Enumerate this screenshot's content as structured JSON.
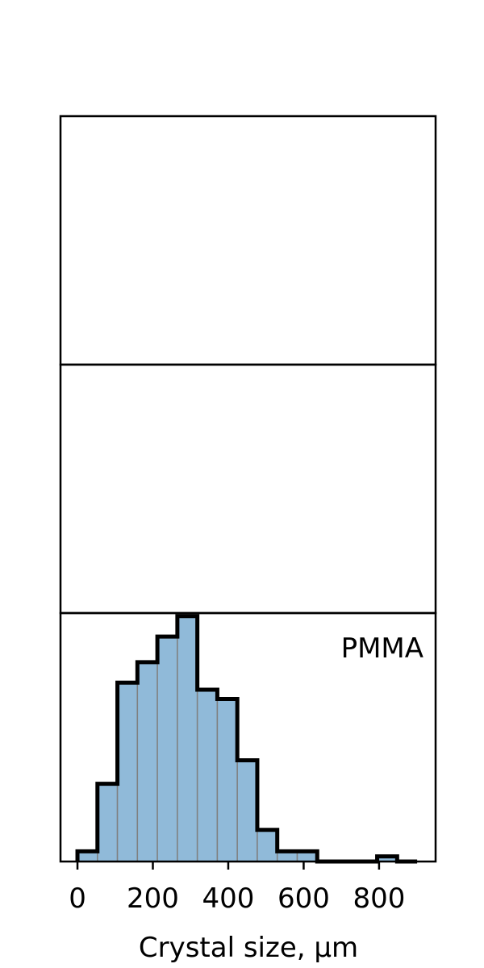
{
  "chart_data": {
    "type": "bar",
    "subtype": "histogram",
    "panels": [
      {
        "label": "",
        "bins": []
      },
      {
        "label": "",
        "bins": []
      },
      {
        "label": "PMMA",
        "bin_width": 53,
        "bins": [
          {
            "x0": 0,
            "x1": 53,
            "count": 1
          },
          {
            "x0": 53,
            "x1": 106,
            "count": 7.6
          },
          {
            "x0": 106,
            "x1": 159,
            "count": 17.5
          },
          {
            "x0": 159,
            "x1": 212,
            "count": 19.5
          },
          {
            "x0": 212,
            "x1": 265,
            "count": 22
          },
          {
            "x0": 265,
            "x1": 318,
            "count": 24
          },
          {
            "x0": 318,
            "x1": 371,
            "count": 16.8
          },
          {
            "x0": 371,
            "x1": 424,
            "count": 15.9
          },
          {
            "x0": 424,
            "x1": 477,
            "count": 9.9
          },
          {
            "x0": 477,
            "x1": 530,
            "count": 3.1
          },
          {
            "x0": 530,
            "x1": 583,
            "count": 1
          },
          {
            "x0": 583,
            "x1": 636,
            "count": 1
          },
          {
            "x0": 636,
            "x1": 689,
            "count": 0
          },
          {
            "x0": 689,
            "x1": 742,
            "count": 0
          },
          {
            "x0": 742,
            "x1": 795,
            "count": 0
          },
          {
            "x0": 795,
            "x1": 848,
            "count": 0.5
          },
          {
            "x0": 848,
            "x1": 901,
            "count": 0
          }
        ]
      }
    ],
    "xlabel": "Crystal size, μm",
    "xticks": [
      0,
      200,
      400,
      600,
      800
    ],
    "xlim": [
      -45,
      950
    ],
    "ylim": [
      0,
      24.3
    ],
    "show_yticks": false,
    "grid": false,
    "colors": {
      "fill": "#90bad9",
      "outline": "#000000",
      "bin_edge": "#808080"
    }
  }
}
